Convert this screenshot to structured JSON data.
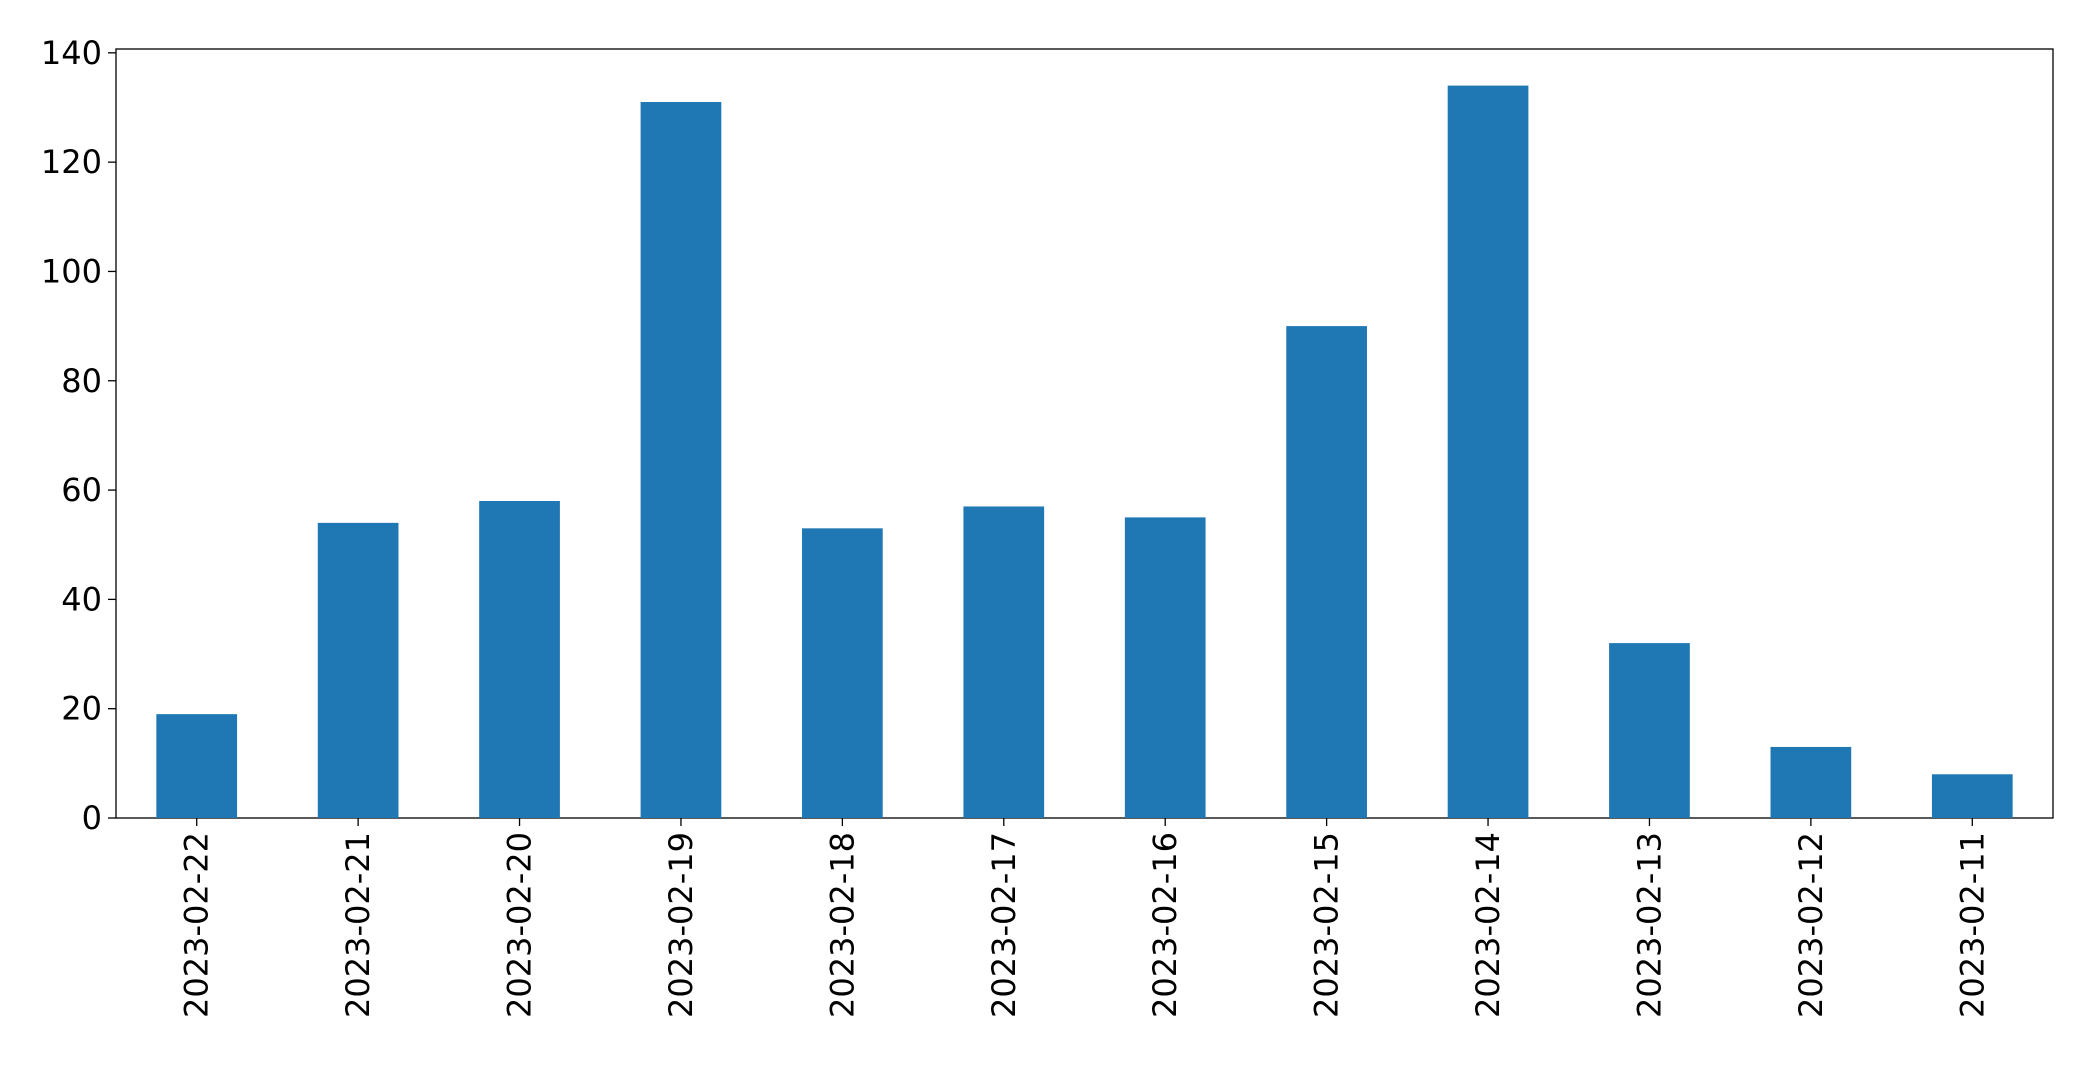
{
  "chart_data": {
    "type": "bar",
    "categories": [
      "2023-02-22",
      "2023-02-21",
      "2023-02-20",
      "2023-02-19",
      "2023-02-18",
      "2023-02-17",
      "2023-02-16",
      "2023-02-15",
      "2023-02-14",
      "2023-02-13",
      "2023-02-12",
      "2023-02-11"
    ],
    "values": [
      19,
      54,
      58,
      131,
      53,
      57,
      55,
      90,
      134,
      32,
      13,
      8
    ],
    "color": "#1f77b4",
    "ylim": [
      0,
      140.7
    ],
    "yticks": [
      0,
      20,
      40,
      60,
      80,
      100,
      120,
      140
    ],
    "grid": false
  }
}
